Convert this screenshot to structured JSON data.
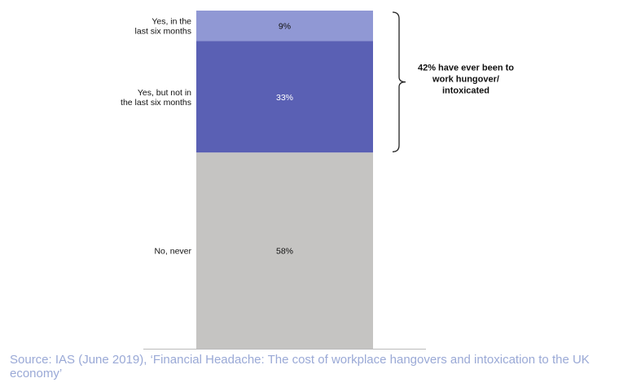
{
  "chart_data": {
    "type": "bar",
    "stacked": true,
    "categories": [
      "Yes, in the last six months",
      "Yes, but not in the last six months",
      "No, never"
    ],
    "values": [
      9,
      33,
      58
    ],
    "value_labels": [
      "9%",
      "33%",
      "58%"
    ],
    "colors": [
      "#9098d4",
      "#5a60b4",
      "#c5c4c2"
    ],
    "label_colors": [
      "#111111",
      "#ffffff",
      "#111111"
    ],
    "category_lines": [
      [
        "Yes, in the",
        "last six months"
      ],
      [
        "Yes, but not in",
        "the last six months"
      ],
      [
        "No, never"
      ]
    ],
    "annotation": {
      "lines": [
        "42% have ever been to",
        "work hungover/",
        "intoxicated"
      ],
      "covers_segments": [
        0,
        1
      ]
    },
    "ylim": [
      0,
      100
    ],
    "title": "",
    "xlabel": "",
    "ylabel": ""
  },
  "source": "Source: IAS (June 2019), ‘Financial Headache: The cost of workplace hangovers and intoxication to the UK economy’"
}
